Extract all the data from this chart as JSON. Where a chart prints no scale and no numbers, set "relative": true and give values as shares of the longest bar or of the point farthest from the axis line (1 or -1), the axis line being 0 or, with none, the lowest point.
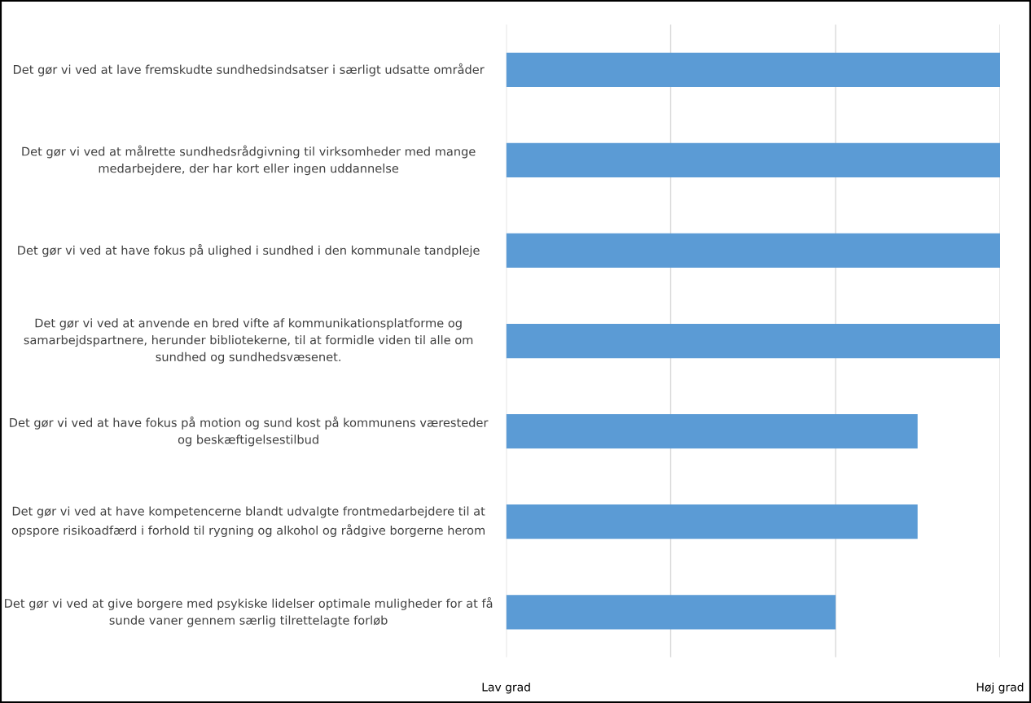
{
  "chart_data": {
    "type": "bar",
    "orientation": "horizontal",
    "categories": [
      "Det gør vi ved at lave fremskudte sundhedsindsatser i særligt udsatte områder",
      "Det gør vi ved at målrette sundhedsrådgivning til virksomheder med mange medarbejdere, der har kort eller ingen uddannelse",
      "Det gør vi ved at have fokus på ulighed i sundhed i den kommunale tandpleje",
      "Det gør vi ved at anvende en bred vifte af kommunikationsplatforme og samarbejdspartnere, herunder bibliotekerne, til at formidle viden til alle om sundhed og sundhedsvæsenet.",
      "Det gør vi ved at have fokus på motion og sund kost på kommunens væresteder og beskæftigelsestilbud",
      "Det gør vi ved at have kompetencerne blandt udvalgte frontmedarbejdere til at opspore risikoadfærd i forhold til rygning og alkohol og rådgive borgerne herom",
      "Det gør vi ved at give borgere med psykiske lidelser optimale muligheder for at få sunde vaner gennem særlig tilrettelagte forløb"
    ],
    "values": [
      1,
      1,
      1,
      1,
      0.833,
      0.833,
      0.667
    ],
    "relative": true,
    "color": "#5b9bd5",
    "annotations": [
      "Lav grad",
      "Høj grad"
    ],
    "ref_lines": [
      {
        "axis": "x",
        "value": 0,
        "color": "#d9d9d9"
      },
      {
        "axis": "x",
        "value": 0.333,
        "color": "#d9d9d9"
      },
      {
        "axis": "x",
        "value": 0.667,
        "color": "#d9d9d9"
      },
      {
        "axis": "x",
        "value": 1,
        "color": "#d9d9d9"
      }
    ]
  }
}
